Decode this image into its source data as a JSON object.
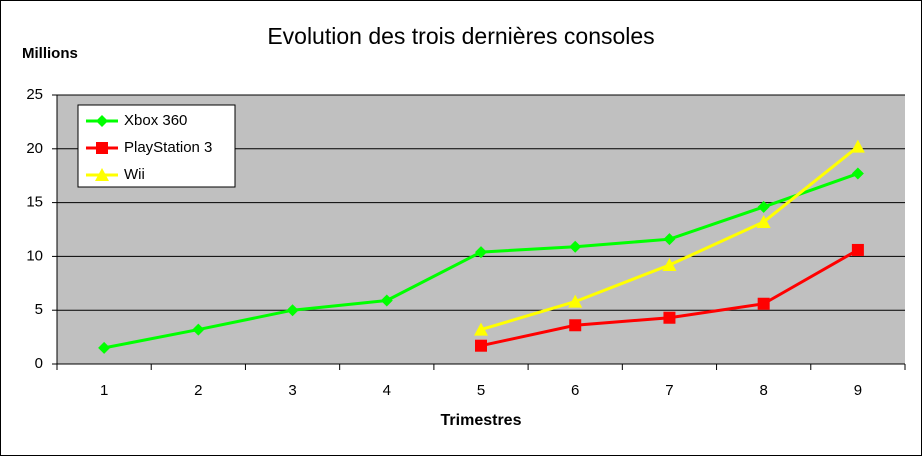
{
  "chart_data": {
    "type": "line",
    "title": "Evolution des trois dernières consoles",
    "y_label": "Millions",
    "x_label": "Trimestres",
    "categories": [
      1,
      2,
      3,
      4,
      5,
      6,
      7,
      8,
      9
    ],
    "series": [
      {
        "name": "Xbox 360",
        "color": "#00ff00",
        "marker": "diamond",
        "values": [
          1.5,
          3.2,
          5.0,
          5.9,
          10.4,
          10.9,
          11.6,
          14.6,
          17.7
        ]
      },
      {
        "name": "PlayStation 3",
        "color": "#ff0000",
        "marker": "square",
        "values": [
          null,
          null,
          null,
          null,
          1.7,
          3.6,
          4.3,
          5.6,
          10.6
        ]
      },
      {
        "name": "Wii",
        "color": "#ffff00",
        "marker": "triangle",
        "values": [
          null,
          null,
          null,
          null,
          3.2,
          5.8,
          9.2,
          13.2,
          20.2
        ]
      }
    ],
    "ylim": [
      0,
      25
    ],
    "yticks": [
      0,
      5,
      10,
      15,
      20,
      25
    ],
    "grid": true,
    "legend": "upper left",
    "background": "#c0c0c0"
  }
}
